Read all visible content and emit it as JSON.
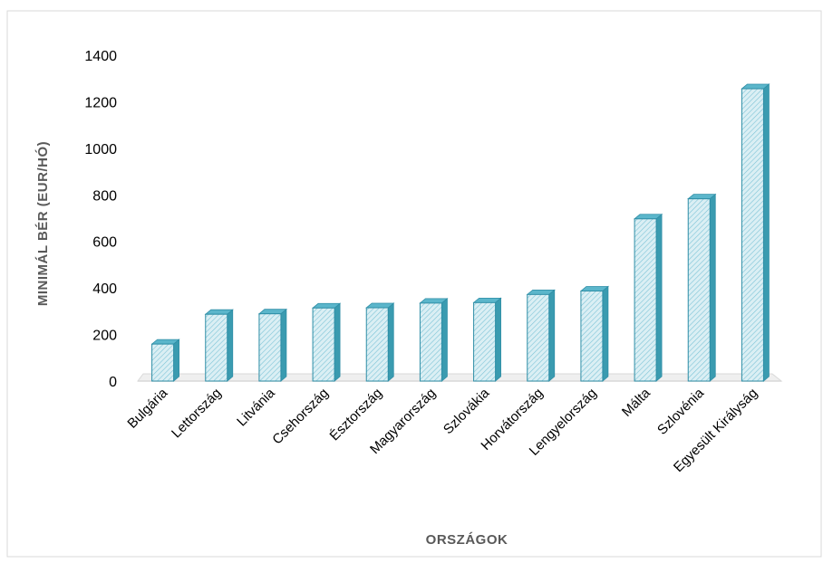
{
  "chart_data": {
    "type": "bar",
    "title": "",
    "xlabel": "ORSZÁGOK",
    "ylabel": "MINIMÁL BÉR  (EUR/HÓ)",
    "ylim": [
      0,
      1400
    ],
    "yticks": [
      0,
      200,
      400,
      600,
      800,
      1000,
      1200,
      1400
    ],
    "grid": false,
    "legend": "none",
    "categories": [
      "Bulgária",
      "Lettország",
      "Litvánia",
      "Csehország",
      "Észtország",
      "Magyarország",
      "Szlovákia",
      "Horvátország",
      "Lengyelország",
      "Málta",
      "Szlovénia",
      "Egyesült Királyság"
    ],
    "values": [
      159,
      287,
      289,
      314,
      315,
      335,
      337,
      372,
      387,
      697,
      783,
      1256
    ],
    "colors": {
      "bar_front": "#dbeff4",
      "bar_hatch": "#7cc3d6",
      "bar_side": "#3a9bb0",
      "bar_top": "#5bb6cb",
      "bar_outline": "#2f8ea6",
      "axis": "#d9d9d9",
      "frame": "#d9d9d9"
    }
  }
}
